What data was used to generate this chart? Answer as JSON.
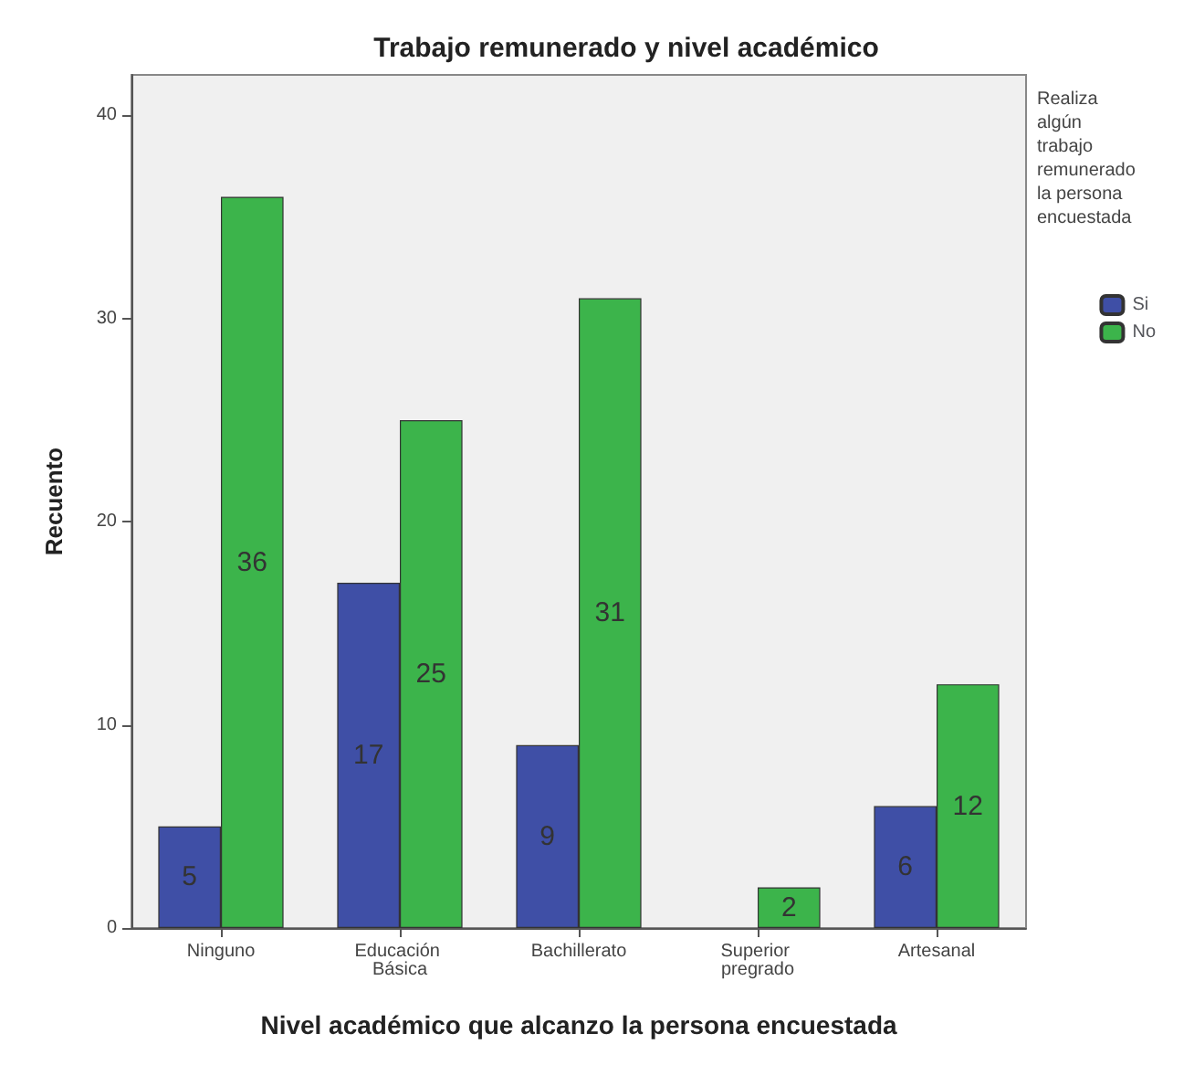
{
  "chart_data": {
    "type": "bar",
    "title": "Trabajo remunerado y nivel académico",
    "xlabel": "Nivel académico que alcanzo la persona encuestada",
    "ylabel": "Recuento",
    "legend_title": "Realiza algún trabajo remunerado la persona encuestada",
    "categories": [
      "Ninguno",
      "Educación Básica",
      "Bachillerato",
      "Superior pregrado",
      "Artesanal"
    ],
    "series": [
      {
        "name": "Si",
        "color": "#3f4fa6",
        "values": [
          5,
          17,
          9,
          null,
          6
        ]
      },
      {
        "name": "No",
        "color": "#3cb44b",
        "values": [
          36,
          25,
          31,
          2,
          12
        ]
      }
    ],
    "ylim": [
      0,
      42
    ],
    "yticks": [
      0,
      10,
      20,
      30,
      40
    ],
    "grid": false,
    "legend": "right",
    "data_labels": true
  }
}
